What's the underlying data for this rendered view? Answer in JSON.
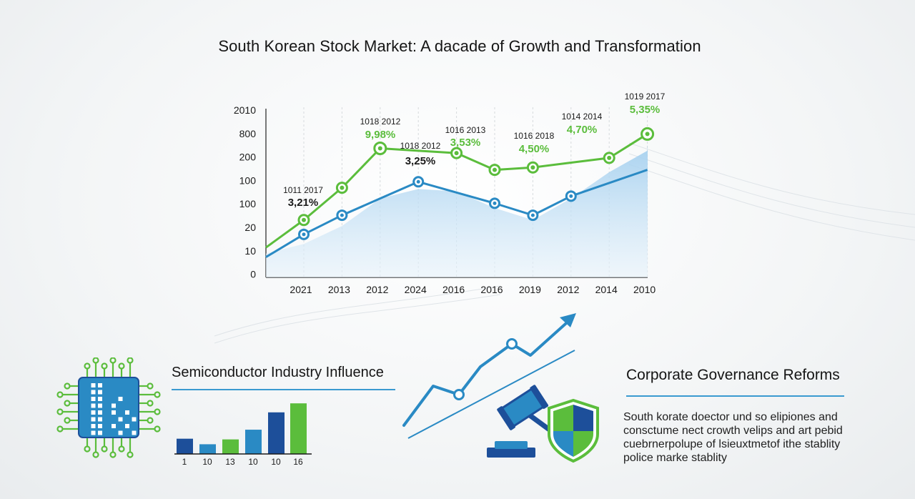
{
  "page": {
    "title": "South Korean Stock Market: A dacade of Growth and Transformation"
  },
  "colors": {
    "green": "#5bbd3c",
    "blue": "#2a8ac4",
    "area": "#cfe6f6",
    "navy": "#1d4f9a"
  },
  "chart_data": [
    {
      "type": "line",
      "title": "South Korean Stock Market: A dacade of Growth and Transformation",
      "categories": [
        "2021",
        "2013",
        "2012",
        "2024",
        "2016",
        "2016",
        "2019",
        "2012",
        "2014",
        "2010"
      ],
      "y_tick_labels": [
        "2010",
        "800",
        "200",
        "100",
        "100",
        "20",
        "10",
        "0"
      ],
      "series": [
        {
          "values": [
            2.4,
            3.75,
            5.4,
            null,
            5.2,
            4.5,
            4.6,
            null,
            5.0,
            6.0
          ]
        },
        {
          "values": [
            1.8,
            2.6,
            null,
            4.0,
            null,
            3.1,
            2.6,
            3.4,
            null,
            null
          ]
        }
      ],
      "annotations": [
        {
          "label": "1011 2017",
          "value": "3,21%"
        },
        {
          "label": "1018 2012",
          "value": "9,98%"
        },
        {
          "label": "1018 2012",
          "value": "3,25%"
        },
        {
          "label": "1016 2013",
          "value": "3,53%"
        },
        {
          "label": "1016 2018",
          "value": "4,50%"
        },
        {
          "label": "1014 2014",
          "value": "4,70%"
        },
        {
          "label": "1019 2017",
          "value": "5,35%"
        }
      ]
    },
    {
      "type": "bar",
      "title": "Semiconductor Industry Influence",
      "categories": [
        "1",
        "10",
        "13",
        "10",
        "10",
        "16"
      ],
      "values": [
        2.2,
        1.4,
        2.1,
        3.5,
        6.0,
        7.3
      ],
      "colors": [
        "#1d4f9a",
        "#2a8ac4",
        "#5bbd3c",
        "#2a8ac4",
        "#1d4f9a",
        "#5bbd3c"
      ]
    }
  ],
  "semiconductor": {
    "title": "Semiconductor Industry Influence"
  },
  "governance": {
    "title": "Corporate Governance Reforms",
    "lines": [
      "South korate doector und so elipiones and",
      "consctume nect crowth velips and art pebid",
      "cuebrnerpolupe of lsieuxtmetof ithe stablity",
      "police marke stablity"
    ]
  },
  "icons": [
    "semiconductor-chip-icon",
    "gavel-icon",
    "shield-icon",
    "trend-arrow-icon"
  ]
}
